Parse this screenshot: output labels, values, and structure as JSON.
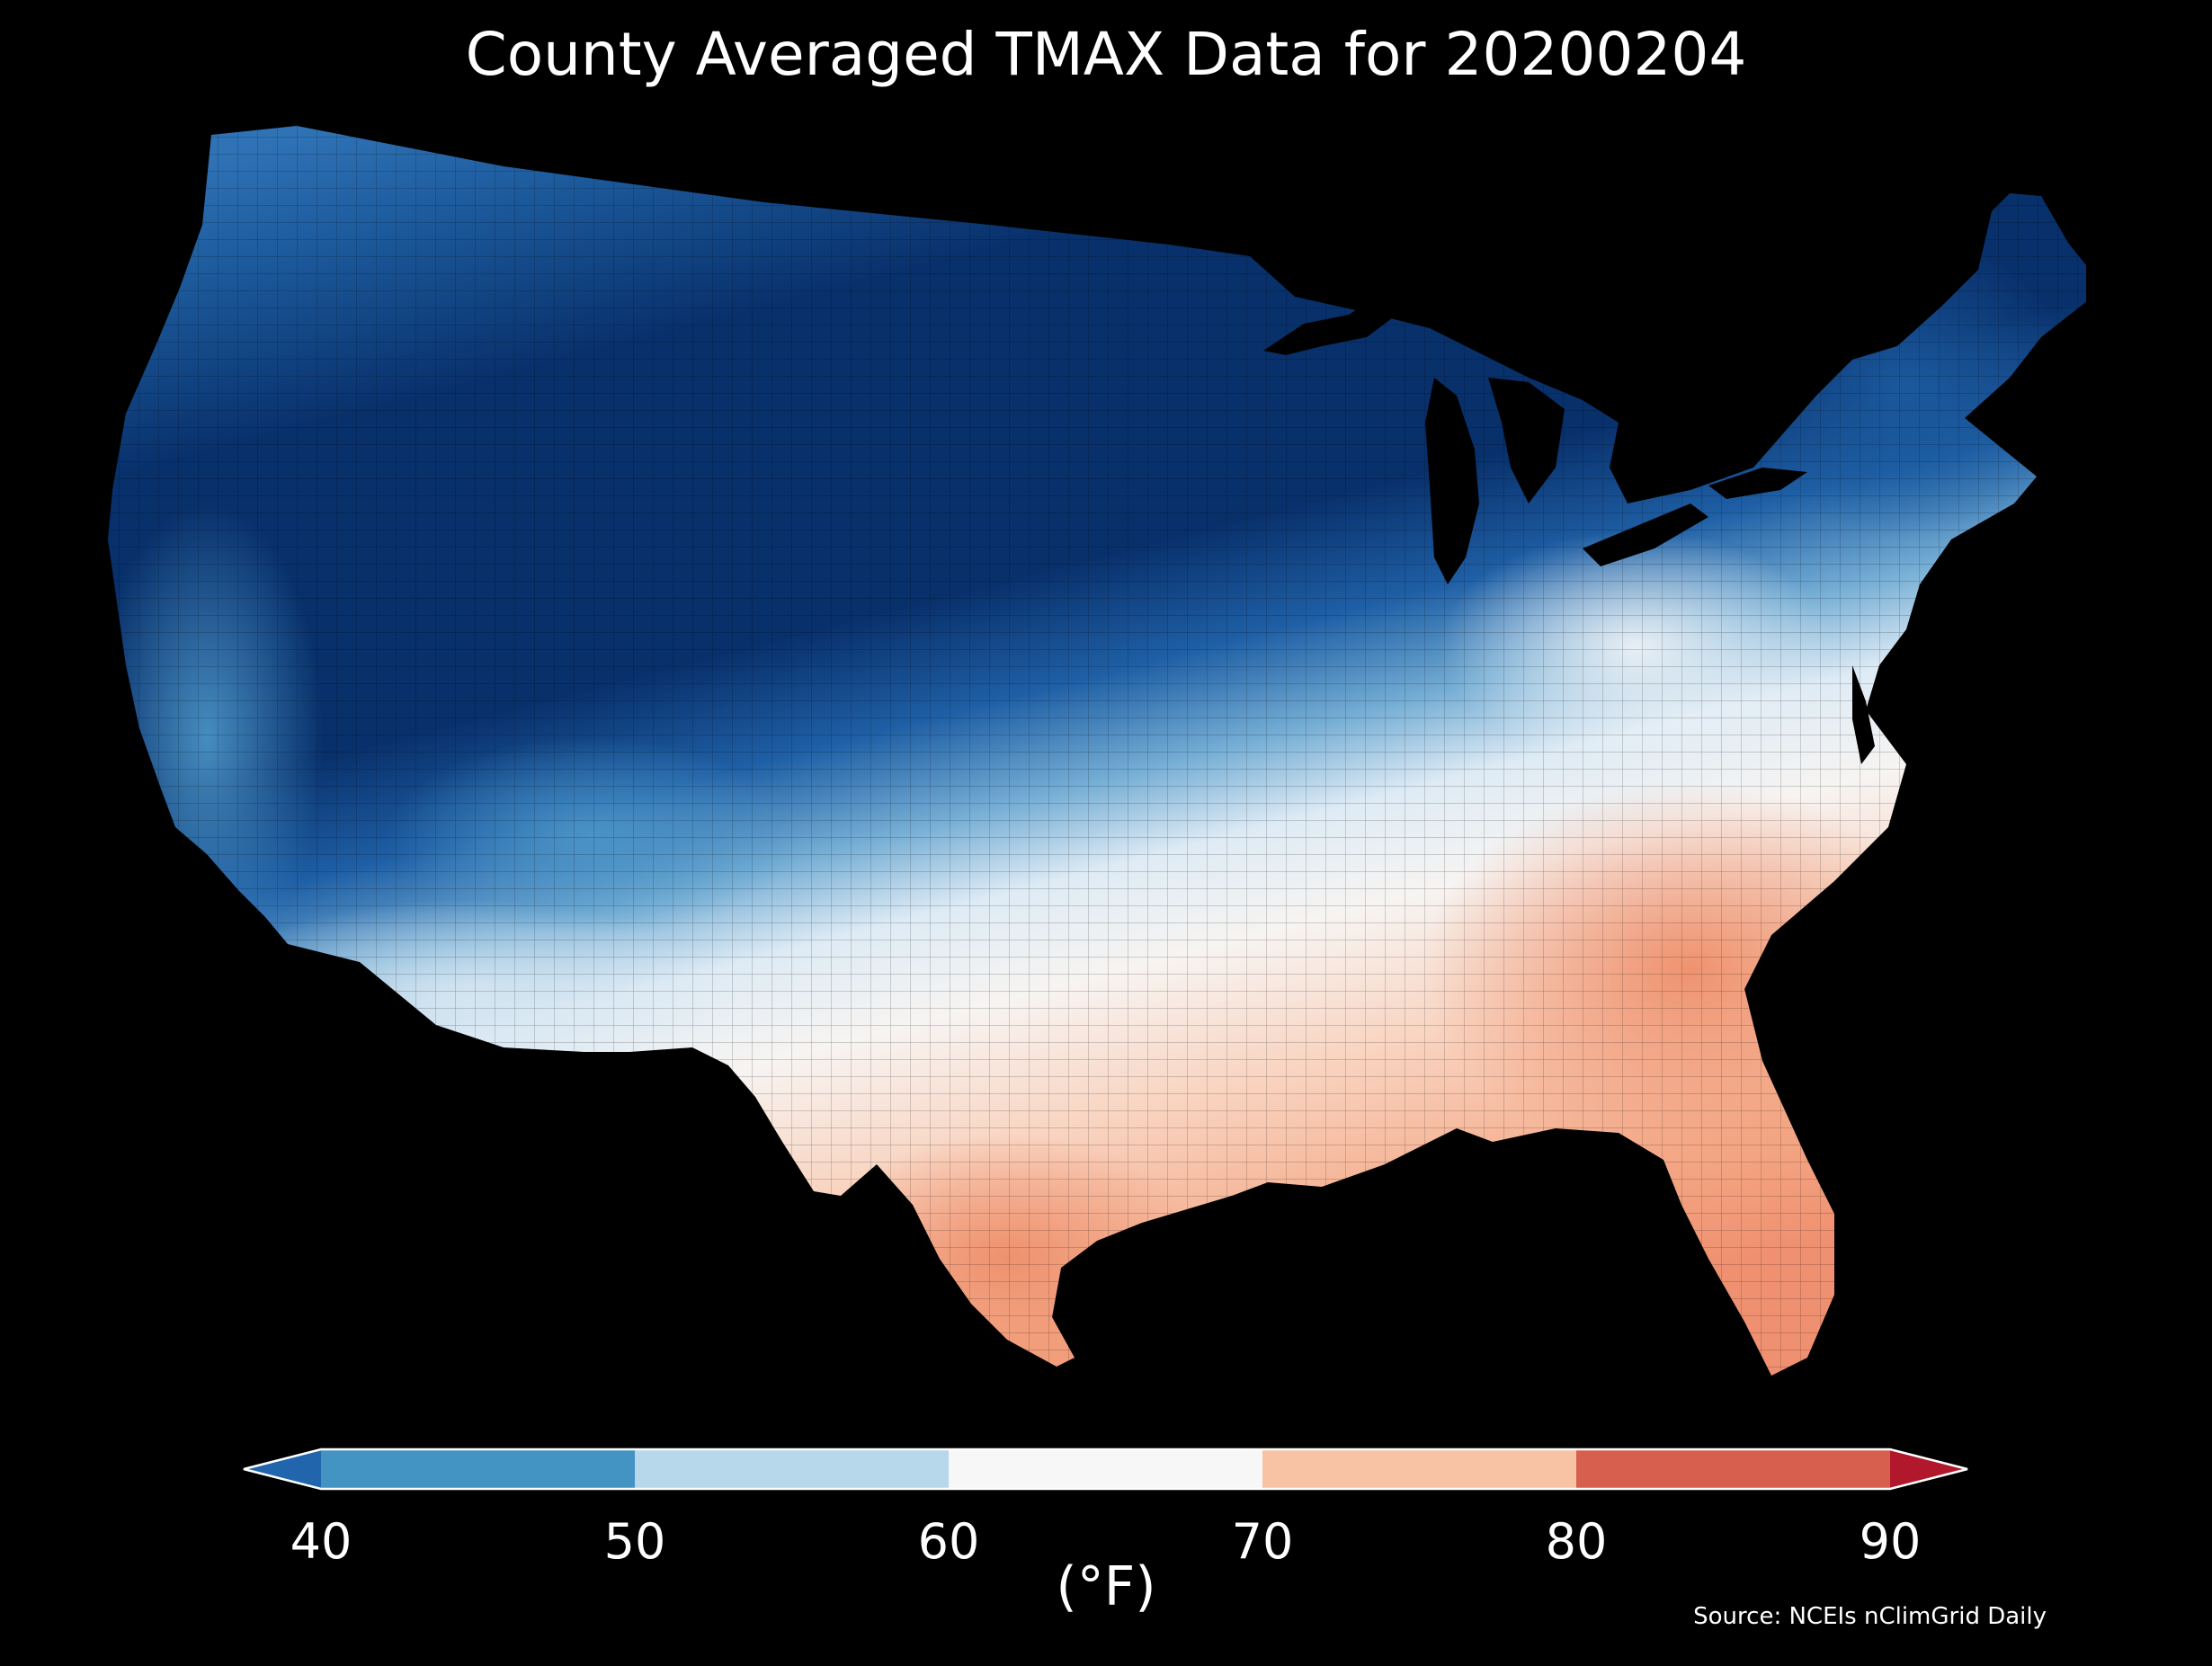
{
  "title": "County Averaged TMAX Data for 20200204",
  "source": "Source: NCEIs nClimGrid Daily",
  "colorbar": {
    "unit": "(°F)",
    "ticks": [
      "40",
      "50",
      "60",
      "70",
      "80",
      "90"
    ],
    "bins": [
      {
        "from": null,
        "to": 40,
        "color": "#2166ac"
      },
      {
        "from": 40,
        "to": 50,
        "color": "#4393c3"
      },
      {
        "from": 50,
        "to": 60,
        "color": "#b7d7ea"
      },
      {
        "from": 60,
        "to": 70,
        "color": "#f7f7f7"
      },
      {
        "from": 70,
        "to": 80,
        "color": "#f8c2a5"
      },
      {
        "from": 80,
        "to": 90,
        "color": "#d6604d"
      },
      {
        "from": 90,
        "to": null,
        "color": "#b2182b"
      }
    ]
  },
  "map": {
    "region": "Contiguous United States",
    "units": "°F",
    "colors": {
      "background": "#000000",
      "coldest": "#08306b",
      "cold": "#2166ac",
      "cool": "#4393c3",
      "mild": "#b7d7ea",
      "neutral": "#f7f7f7",
      "warm": "#f8c2a5",
      "warmest": "#ef8a62"
    }
  }
}
